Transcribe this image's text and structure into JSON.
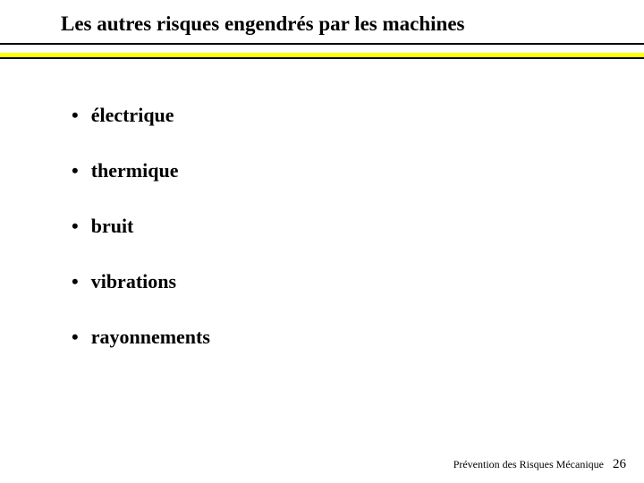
{
  "title": {
    "text": "Les autres risques engendrés par les machines",
    "fontsize": 23,
    "color": "#000000",
    "fontweight": "bold"
  },
  "divider": {
    "black_line_height": 2,
    "yellow_line_height": 5,
    "gap_height": 9,
    "black_color": "#000000",
    "yellow_color": "#ffff00"
  },
  "bullets": {
    "items": [
      {
        "label": "électrique"
      },
      {
        "label": "thermique"
      },
      {
        "label": "bruit"
      },
      {
        "label": "vibrations"
      },
      {
        "label": "rayonnements"
      }
    ],
    "fontsize": 22,
    "color": "#000000",
    "fontweight": "bold",
    "bullet_char": "•"
  },
  "footer": {
    "text": "Prévention des Risques Mécanique",
    "page_number": "26",
    "text_fontsize": 12,
    "number_fontsize": 15,
    "color": "#000000"
  },
  "background_color": "#ffffff"
}
